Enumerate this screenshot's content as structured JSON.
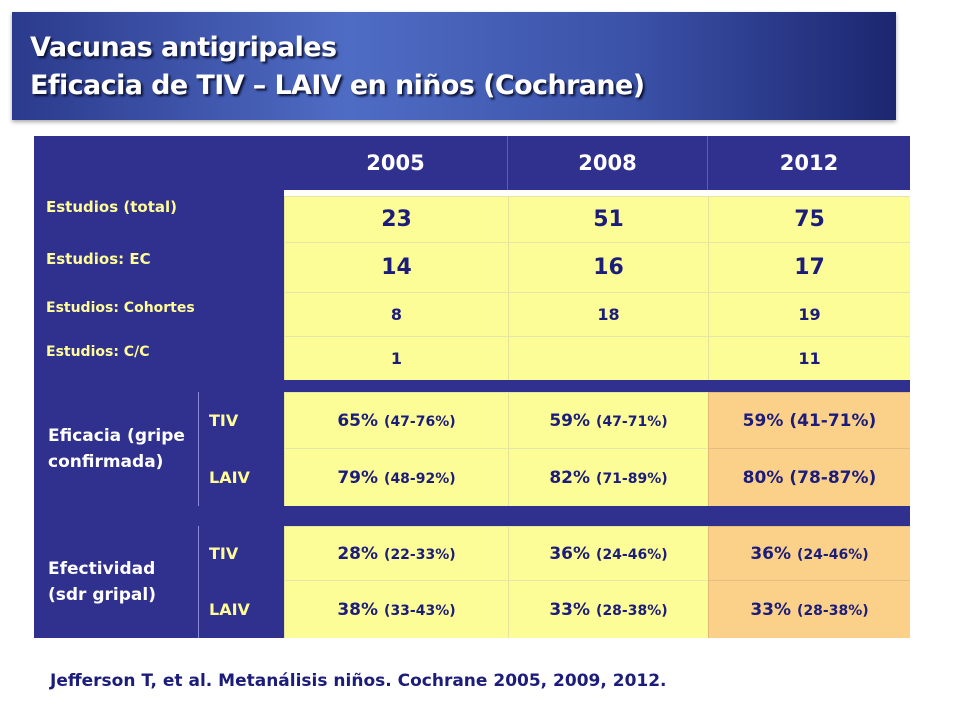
{
  "title": {
    "line1": "Vacunas antigripales",
    "line2": "Eficacia de TIV – LAIV en niños (Cochrane)"
  },
  "table": {
    "years": [
      "2005",
      "2008",
      "2012"
    ],
    "studies": [
      {
        "label": "Estudios (total)",
        "values": [
          "23",
          "51",
          "75"
        ]
      },
      {
        "label": "Estudios: EC",
        "values": [
          "14",
          "16",
          "17"
        ]
      },
      {
        "label": "Estudios: Cohortes",
        "values": [
          "8",
          "18",
          "19"
        ]
      },
      {
        "label": "Estudios: C/C",
        "values": [
          "1",
          "",
          "11"
        ]
      }
    ],
    "eficacia": {
      "label": "Eficacia (gripe confirmada)",
      "rows": [
        {
          "vaccine": "TIV",
          "values": [
            {
              "pct": "65%",
              "ci": "(47-76%)"
            },
            {
              "pct": "59%",
              "ci": "(47-71%)"
            },
            {
              "pct": "59%",
              "ci": "(41-71%)"
            }
          ]
        },
        {
          "vaccine": "LAIV",
          "values": [
            {
              "pct": "79%",
              "ci": "(48-92%)"
            },
            {
              "pct": "82%",
              "ci": "(71-89%)"
            },
            {
              "pct": "80%",
              "ci": "(78-87%)"
            }
          ]
        }
      ]
    },
    "efectividad": {
      "label": "Efectividad (sdr gripal)",
      "rows": [
        {
          "vaccine": "TIV",
          "values": [
            {
              "pct": "28%",
              "ci": "(22-33%)"
            },
            {
              "pct": "36%",
              "ci": "(24-46%)"
            },
            {
              "pct": "36%",
              "ci": "(24-46%)"
            }
          ]
        },
        {
          "vaccine": "LAIV",
          "values": [
            {
              "pct": "38%",
              "ci": "(33-43%)"
            },
            {
              "pct": "33%",
              "ci": "(28-38%)"
            },
            {
              "pct": "33%",
              "ci": "(28-38%)"
            }
          ]
        }
      ]
    }
  },
  "footer": "Jefferson T, et al. Metanálisis niños. Cochrane 2005, 2009, 2012.",
  "colors": {
    "navy": "#30308f",
    "yellow": "#fdfd98",
    "orange": "#fbd089",
    "label_yellow": "#fffd98"
  }
}
